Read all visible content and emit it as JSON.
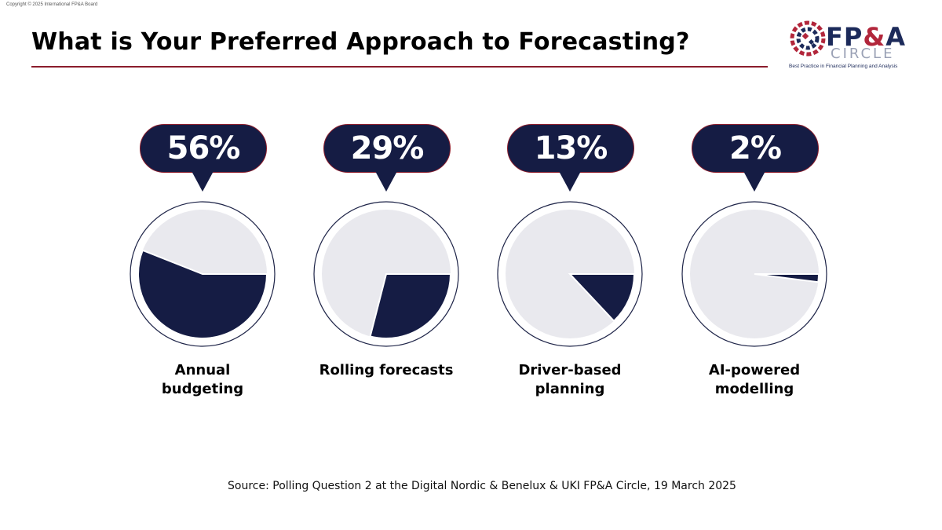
{
  "copyright": "Copyright © 2025 International FP&A Board",
  "title": "What is Your Preferred Approach to Forecasting?",
  "logo": {
    "main_prefix": "FP",
    "main_amp": "&",
    "main_suffix": "A",
    "sub": "CIRCLE",
    "tagline": "Best Practice in Financial Planning and Analysis"
  },
  "source": "Source: Polling Question 2 at the Digital Nordic & Benelux & UKI FP&A Circle, 19 March 2025",
  "colors": {
    "navy": "#151c44",
    "slice_bg": "#e9e9ee",
    "accent": "#8b1d2c"
  },
  "chart_data": {
    "type": "pie",
    "title": "What is Your Preferred Approach to Forecasting?",
    "categories": [
      "Annual budgeting",
      "Rolling forecasts",
      "Driver-based planning",
      "AI-powered modelling"
    ],
    "values": [
      56,
      29,
      13,
      2
    ],
    "value_labels": [
      "56%",
      "29%",
      "13%",
      "2%"
    ],
    "label_lines": [
      [
        "Annual",
        "budgeting"
      ],
      [
        "Rolling forecasts"
      ],
      [
        "Driver-based",
        "planning"
      ],
      [
        "AI-powered",
        "modelling"
      ]
    ],
    "unit": "%"
  }
}
